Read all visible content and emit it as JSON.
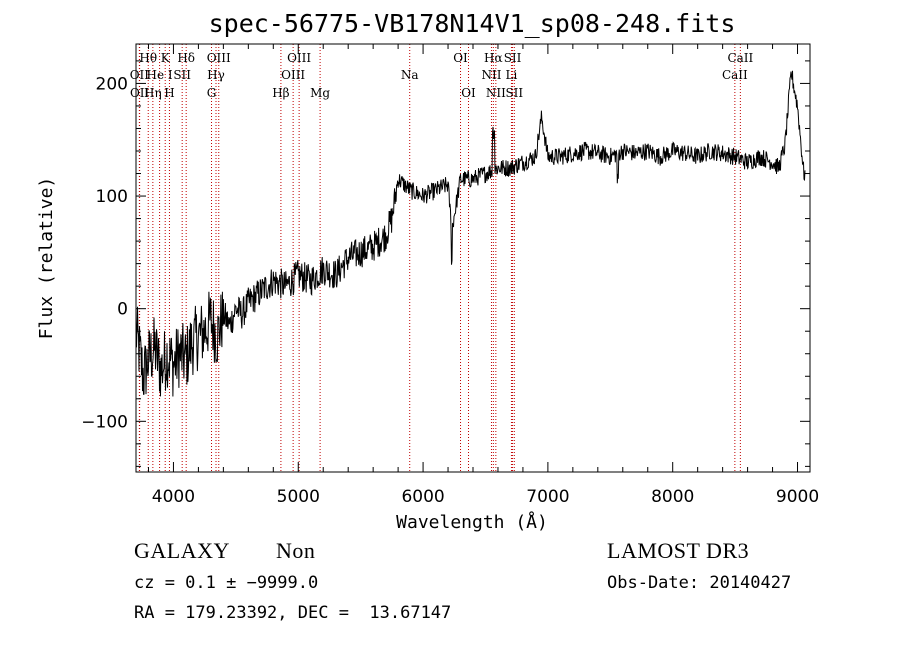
{
  "chart_data": {
    "type": "line",
    "title": "spec-56775-VB178N14V1_sp08-248.fits",
    "xlabel": "Wavelength (Å)",
    "ylabel": "Flux (relative)",
    "xlim": [
      3700,
      9100
    ],
    "ylim": [
      -145,
      235
    ],
    "xticks": [
      4000,
      5000,
      6000,
      7000,
      8000,
      9000
    ],
    "yticks": [
      -100,
      0,
      100,
      200
    ],
    "xtick_labels": [
      "4000",
      "5000",
      "6000",
      "7000",
      "8000",
      "9000"
    ],
    "ytick_labels": [
      "−100",
      "0",
      "100",
      "200"
    ],
    "series": [
      {
        "name": "flux",
        "color": "#000000",
        "x": [
          3700,
          3760,
          3800,
          3850,
          3900,
          3950,
          4000,
          4050,
          4100,
          4150,
          4200,
          4250,
          4300,
          4350,
          4400,
          4450,
          4500,
          4550,
          4600,
          4650,
          4700,
          4800,
          4900,
          5000,
          5100,
          5200,
          5300,
          5400,
          5500,
          5600,
          5700,
          5750,
          5800,
          5850,
          5900,
          6000,
          6100,
          6200,
          6230,
          6300,
          6400,
          6500,
          6600,
          6700,
          6800,
          6900,
          6950,
          7000,
          7100,
          7200,
          7300,
          7400,
          7500,
          7600,
          7700,
          7800,
          7900,
          8000,
          8100,
          8200,
          8300,
          8400,
          8500,
          8600,
          8700,
          8800,
          8850,
          8900,
          8950,
          9000,
          9050
        ],
        "values": [
          -20,
          -60,
          -45,
          -35,
          -55,
          -40,
          -50,
          -40,
          -45,
          -30,
          -25,
          -20,
          -10,
          -25,
          -5,
          -15,
          0,
          -5,
          5,
          10,
          15,
          25,
          20,
          30,
          25,
          35,
          30,
          45,
          50,
          55,
          65,
          80,
          115,
          110,
          105,
          100,
          105,
          110,
          70,
          115,
          115,
          120,
          125,
          125,
          130,
          135,
          170,
          135,
          135,
          138,
          140,
          138,
          135,
          140,
          138,
          140,
          135,
          140,
          138,
          135,
          140,
          138,
          135,
          130,
          135,
          130,
          125,
          145,
          210,
          180,
          120
        ]
      }
    ],
    "lines": [
      {
        "name": "OII",
        "wl": 3727,
        "row": 2
      },
      {
        "name": "OII",
        "wl": 3729,
        "row": 3
      },
      {
        "name": "Hθ",
        "wl": 3798,
        "row": 1
      },
      {
        "name": "He I",
        "wl": 3889,
        "row": 2
      },
      {
        "name": "Hη",
        "wl": 3835,
        "row": 3
      },
      {
        "name": "K",
        "wl": 3934,
        "row": 1
      },
      {
        "name": "H",
        "wl": 3968,
        "row": 3
      },
      {
        "name": "SII",
        "wl": 4070,
        "row": 2
      },
      {
        "name": "Hδ",
        "wl": 4102,
        "row": 1
      },
      {
        "name": "OIII",
        "wl": 4363,
        "row": 1
      },
      {
        "name": "Hγ",
        "wl": 4341,
        "row": 2
      },
      {
        "name": "G",
        "wl": 4305,
        "row": 3
      },
      {
        "name": "Hβ",
        "wl": 4861,
        "row": 3
      },
      {
        "name": "OIII",
        "wl": 4959,
        "row": 2
      },
      {
        "name": "OIII",
        "wl": 5007,
        "row": 1
      },
      {
        "name": "Mg",
        "wl": 5175,
        "row": 3
      },
      {
        "name": "Na",
        "wl": 5893,
        "row": 2
      },
      {
        "name": "OI",
        "wl": 6300,
        "row": 1
      },
      {
        "name": "OI",
        "wl": 6364,
        "row": 3
      },
      {
        "name": "NII",
        "wl": 6548,
        "row": 2
      },
      {
        "name": "Hα",
        "wl": 6563,
        "row": 1
      },
      {
        "name": "NII",
        "wl": 6583,
        "row": 3
      },
      {
        "name": "SII",
        "wl": 6717,
        "row": 1
      },
      {
        "name": "Li",
        "wl": 6708,
        "row": 2
      },
      {
        "name": "SII",
        "wl": 6731,
        "row": 3
      },
      {
        "name": "CaII",
        "wl": 8542,
        "row": 1
      },
      {
        "name": "CaII",
        "wl": 8498,
        "row": 2
      }
    ]
  },
  "info": {
    "object_class": "GALAXY",
    "subclass": "Non",
    "survey": "LAMOST DR3",
    "cz": "cz = 0.1 ± −9999.0",
    "obs_date": "Obs-Date: 20140427",
    "radec": "RA = 179.23392, DEC =  13.67147"
  },
  "colors": {
    "spectrum": "#000000",
    "line_marker": "#c00000"
  }
}
